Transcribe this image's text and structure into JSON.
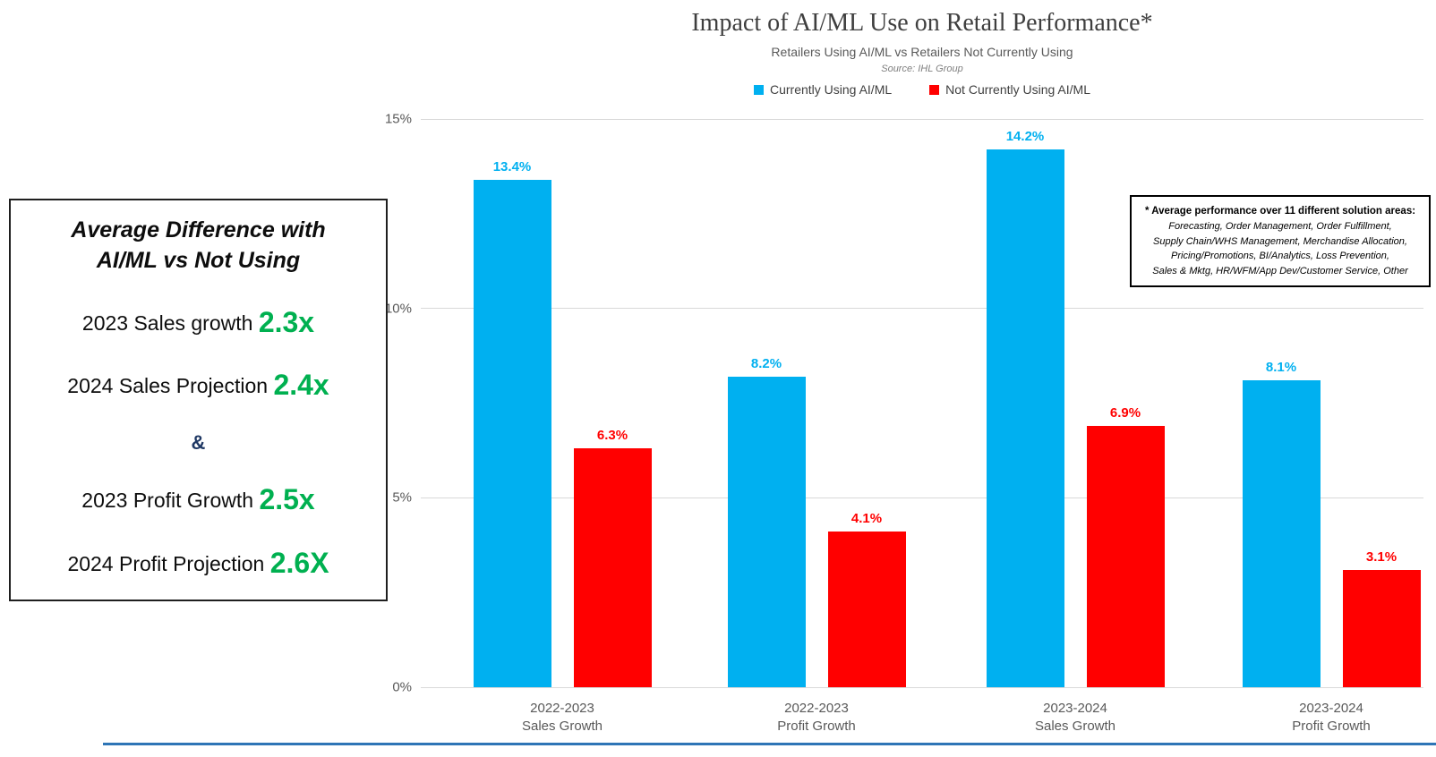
{
  "header": {
    "title": "Impact of AI/ML Use on Retail Performance*",
    "subtitle": "Retailers Using AI/ML vs Retailers Not Currently Using",
    "source": "Source: IHL Group"
  },
  "legend": [
    {
      "label": "Currently Using AI/ML",
      "color": "#00B0F0"
    },
    {
      "label": "Not Currently Using AI/ML",
      "color": "#FF0000"
    }
  ],
  "chart_data": {
    "type": "bar",
    "title": "Impact of AI/ML Use on Retail Performance*",
    "subtitle": "Retailers Using AI/ML vs Retailers Not Currently Using",
    "source": "Source: IHL Group",
    "categories": [
      [
        "2022-2023",
        "Sales Growth"
      ],
      [
        "2022-2023",
        "Profit Growth"
      ],
      [
        "2023-2024",
        "Sales Growth"
      ],
      [
        "2023-2024",
        "Profit Growth"
      ]
    ],
    "series": [
      {
        "name": "Currently Using AI/ML",
        "color": "#00B0F0",
        "values": [
          13.4,
          8.2,
          14.2,
          8.1
        ],
        "labels": [
          "13.4%",
          "8.2%",
          "14.2%",
          "8.1%"
        ]
      },
      {
        "name": "Not Currently Using AI/ML",
        "color": "#FF0000",
        "values": [
          6.3,
          4.1,
          6.9,
          3.1
        ],
        "labels": [
          "6.3%",
          "4.1%",
          "6.9%",
          "3.1%"
        ]
      }
    ],
    "xlabel": "",
    "ylabel": "",
    "ylim": [
      0,
      15
    ],
    "yticks": [
      {
        "value": 0,
        "label": "0%"
      },
      {
        "value": 5,
        "label": "5%"
      },
      {
        "value": 10,
        "label": "10%"
      },
      {
        "value": 15,
        "label": "15%"
      }
    ],
    "grid": true,
    "legend_position": "top"
  },
  "callout_box": {
    "heading_line1": "Average Difference with",
    "heading_line2": "AI/ML vs Not Using",
    "rows": [
      {
        "label": "2023 Sales growth",
        "value": "2.3x"
      },
      {
        "label": "2024 Sales Projection",
        "value": "2.4x"
      },
      {
        "label": "2023 Profit Growth",
        "value": "2.5x"
      },
      {
        "label": "2024 Profit Projection",
        "value": "2.6X"
      }
    ],
    "ampersand": "&",
    "value_color": "#00B050",
    "ampersand_color": "#1F3864"
  },
  "footnote_box": {
    "heading": "* Average performance over 11 different solution areas:",
    "lines": [
      "Forecasting, Order Management, Order Fulfillment,",
      "Supply Chain/WHS Management, Merchandise Allocation,",
      "Pricing/Promotions, BI/Analytics, Loss Prevention,",
      "Sales & Mktg, HR/WFM/App Dev/Customer Service, Other"
    ]
  },
  "colors": {
    "bar_blue": "#00B0F0",
    "bar_red": "#FF0000",
    "value_green": "#00B050",
    "ampersand_navy": "#1F3864",
    "gridline": "#D9D9D9",
    "bottom_rule": "#2E75B6",
    "title_text": "#3F3F3F",
    "axis_text": "#595959"
  }
}
